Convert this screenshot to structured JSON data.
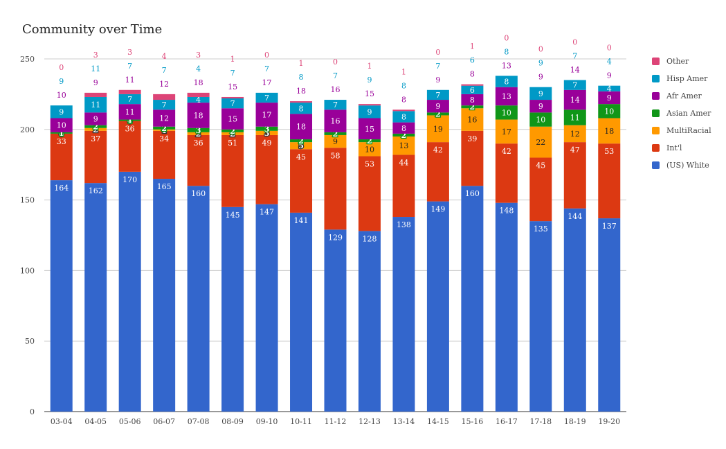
{
  "chart_data": {
    "type": "bar",
    "stacked": true,
    "title": "Community over Time",
    "xlabel": "",
    "ylabel": "",
    "ylim": [
      0,
      250
    ],
    "yticks": [
      0,
      50,
      100,
      150,
      200,
      250
    ],
    "grid": true,
    "legend_position": "right",
    "categories": [
      "03-04",
      "04-05",
      "05-06",
      "06-07",
      "07-08",
      "08-09",
      "09-10",
      "10-11",
      "11-12",
      "12-13",
      "13-14",
      "14-15",
      "15-16",
      "16-17",
      "17-18",
      "18-19",
      "19-20"
    ],
    "series": [
      {
        "name": "(US) White",
        "color": "#3366cc",
        "values": [
          164,
          162,
          170,
          165,
          160,
          145,
          147,
          141,
          129,
          128,
          138,
          149,
          160,
          148,
          135,
          144,
          137
        ]
      },
      {
        "name": "Int'l",
        "color": "#dc3912",
        "values": [
          33,
          37,
          36,
          34,
          36,
          51,
          49,
          45,
          58,
          53,
          44,
          42,
          39,
          42,
          45,
          47,
          53
        ]
      },
      {
        "name": "MultiRacial",
        "color": "#ff9900",
        "values": [
          0,
          2,
          0,
          1,
          2,
          2,
          3,
          5,
          9,
          10,
          13,
          19,
          16,
          17,
          22,
          12,
          18
        ]
      },
      {
        "name": "Asian Amer",
        "color": "#109618",
        "values": [
          1,
          2,
          1,
          2,
          3,
          2,
          3,
          2,
          2,
          2,
          2,
          2,
          2,
          10,
          10,
          11,
          10
        ]
      },
      {
        "name": "Afr Amer",
        "color": "#990099",
        "values": [
          10,
          9,
          11,
          12,
          18,
          15,
          17,
          18,
          16,
          15,
          8,
          9,
          8,
          13,
          9,
          14,
          9
        ]
      },
      {
        "name": "Hisp Amer",
        "color": "#0099c6",
        "values": [
          9,
          11,
          7,
          7,
          4,
          7,
          7,
          8,
          7,
          9,
          8,
          7,
          6,
          8,
          9,
          7,
          4
        ]
      },
      {
        "name": "Other",
        "color": "#dd4477",
        "values": [
          0,
          3,
          3,
          4,
          3,
          1,
          0,
          1,
          0,
          1,
          1,
          0,
          1,
          0,
          0,
          0,
          0
        ]
      }
    ],
    "label_colors": [
      "#ffffff",
      "#ffffff",
      "#222222",
      "#ffffff",
      "#ffffff",
      "#ffffff",
      "#ffffff"
    ],
    "legend_order": [
      "Other",
      "Hisp Amer",
      "Afr Amer",
      "Asian Amer",
      "MultiRacial",
      "Int'l",
      "(US) White"
    ]
  }
}
